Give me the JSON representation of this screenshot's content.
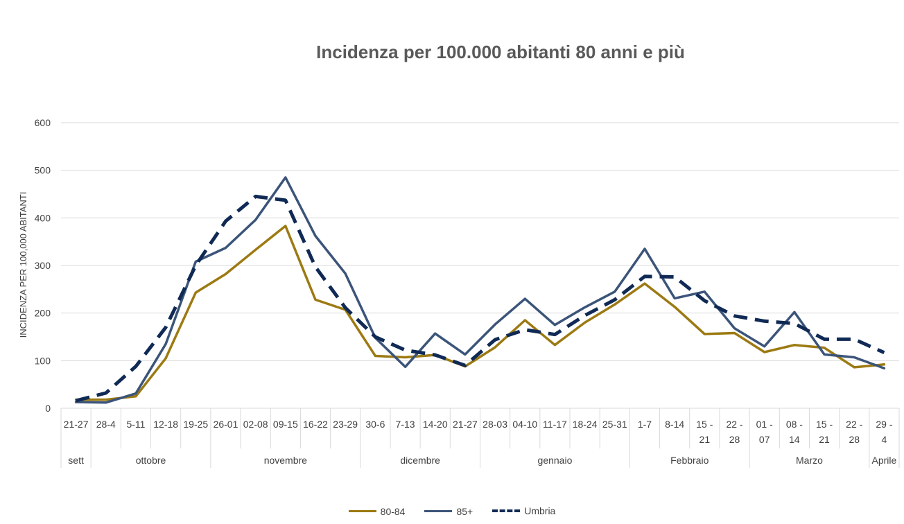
{
  "chart_data": {
    "type": "line",
    "title": "Incidenza per 100.000 abitanti 80 anni e più",
    "ylabel": "INCIDENZA PER 100,000 ABITANTI",
    "ylim": [
      0,
      600
    ],
    "yticks": [
      0,
      100,
      200,
      300,
      400,
      500,
      600
    ],
    "grid": true,
    "legend_position": "bottom",
    "categories": [
      "21-27",
      "28-4",
      "5-11",
      "12-18",
      "19-25",
      "26-01",
      "02-08",
      "09-15",
      "16-22",
      "23-29",
      "30-6",
      "7-13",
      "14-20",
      "21-27",
      "28-03",
      "04-10",
      "11-17",
      "18-24",
      "25-31",
      "1-7",
      "8-14",
      "15 - 21",
      "22 - 28",
      "01 - 07",
      "08 - 14",
      "15 - 21",
      "22 - 28",
      "29 - 4"
    ],
    "month_groups": [
      {
        "label": "sett",
        "count": 1
      },
      {
        "label": "ottobre",
        "count": 4
      },
      {
        "label": "novembre",
        "count": 5
      },
      {
        "label": "dicembre",
        "count": 4
      },
      {
        "label": "gennaio",
        "count": 5
      },
      {
        "label": "Febbraio",
        "count": 4
      },
      {
        "label": "Marzo",
        "count": 4
      },
      {
        "label": "Aprile",
        "count": 1
      }
    ],
    "series": [
      {
        "name": "80-84",
        "color": "#9c7a12",
        "dashed": false,
        "values": [
          18,
          18,
          25,
          105,
          243,
          282,
          333,
          383,
          228,
          207,
          110,
          107,
          112,
          88,
          128,
          185,
          133,
          180,
          218,
          262,
          213,
          156,
          158,
          118,
          133,
          127,
          86,
          92
        ]
      },
      {
        "name": "85+",
        "color": "#3b5479",
        "dashed": false,
        "values": [
          13,
          12,
          31,
          135,
          308,
          337,
          396,
          485,
          362,
          283,
          148,
          87,
          157,
          113,
          176,
          230,
          175,
          212,
          245,
          335,
          231,
          245,
          168,
          130,
          202,
          113,
          107,
          84
        ]
      },
      {
        "name": "Umbria",
        "color": "#102a55",
        "dashed": true,
        "values": [
          16,
          32,
          88,
          170,
          300,
          393,
          445,
          437,
          297,
          211,
          150,
          122,
          112,
          90,
          144,
          165,
          155,
          195,
          228,
          277,
          276,
          226,
          194,
          183,
          178,
          145,
          145,
          117
        ]
      }
    ]
  }
}
